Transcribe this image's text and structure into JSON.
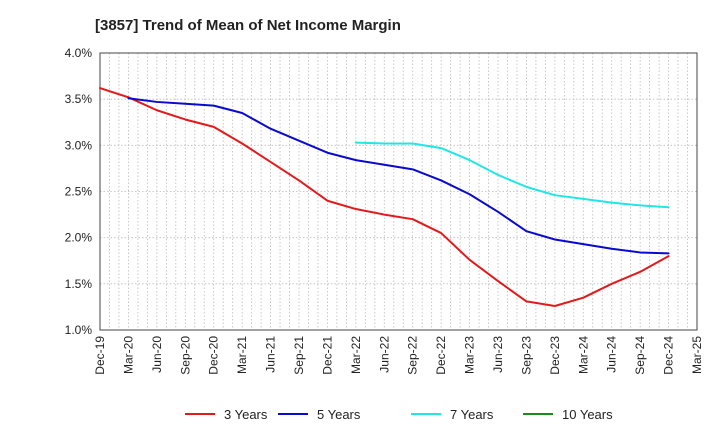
{
  "chart_data": {
    "type": "line",
    "title": "[3857]  Trend of Mean of Net Income Margin",
    "xlabel": "",
    "ylabel": "",
    "x_ticks": [
      "Dec-19",
      "Mar-20",
      "Jun-20",
      "Sep-20",
      "Dec-20",
      "Mar-21",
      "Jun-21",
      "Sep-21",
      "Dec-21",
      "Mar-22",
      "Jun-22",
      "Sep-22",
      "Dec-22",
      "Mar-23",
      "Jun-23",
      "Sep-23",
      "Dec-23",
      "Mar-24",
      "Jun-24",
      "Sep-24",
      "Dec-24",
      "Mar-25"
    ],
    "y_ticks": [
      "1.0%",
      "1.5%",
      "2.0%",
      "2.5%",
      "3.0%",
      "3.5%",
      "4.0%"
    ],
    "ylim": [
      1.0,
      4.0
    ],
    "grid": true,
    "legend_position": "bottom",
    "series": [
      {
        "name": "3 Years",
        "color": "#e31a1c",
        "x": [
          "Dec-19",
          "Mar-20",
          "Jun-20",
          "Sep-20",
          "Dec-20",
          "Mar-21",
          "Jun-21",
          "Sep-21",
          "Dec-21",
          "Mar-22",
          "Jun-22",
          "Sep-22",
          "Dec-22",
          "Mar-23",
          "Jun-23",
          "Sep-23",
          "Dec-23",
          "Mar-24",
          "Jun-24",
          "Sep-24",
          "Dec-24"
        ],
        "values": [
          3.62,
          3.52,
          3.38,
          3.28,
          3.2,
          3.02,
          2.82,
          2.62,
          2.4,
          2.31,
          2.25,
          2.2,
          2.05,
          1.76,
          1.53,
          1.31,
          1.26,
          1.35,
          1.5,
          1.63,
          1.8
        ]
      },
      {
        "name": "5 Years",
        "color": "#0a0acc",
        "x": [
          "Mar-20",
          "Jun-20",
          "Sep-20",
          "Dec-20",
          "Mar-21",
          "Jun-21",
          "Sep-21",
          "Dec-21",
          "Mar-22",
          "Jun-22",
          "Sep-22",
          "Dec-22",
          "Mar-23",
          "Jun-23",
          "Sep-23",
          "Dec-23",
          "Mar-24",
          "Jun-24",
          "Sep-24",
          "Dec-24"
        ],
        "values": [
          3.51,
          3.47,
          3.45,
          3.43,
          3.35,
          3.18,
          3.05,
          2.92,
          2.84,
          2.79,
          2.74,
          2.62,
          2.47,
          2.28,
          2.07,
          1.98,
          1.93,
          1.88,
          1.84,
          1.83
        ]
      },
      {
        "name": "7 Years",
        "color": "#22e6e6",
        "x": [
          "Mar-22",
          "Jun-22",
          "Sep-22",
          "Dec-22",
          "Mar-23",
          "Jun-23",
          "Sep-23",
          "Dec-23",
          "Mar-24",
          "Jun-24",
          "Sep-24",
          "Dec-24"
        ],
        "values": [
          3.03,
          3.02,
          3.02,
          2.97,
          2.84,
          2.68,
          2.55,
          2.46,
          2.42,
          2.38,
          2.35,
          2.33
        ]
      },
      {
        "name": "10 Years",
        "color": "#1a8c1a",
        "x": [],
        "values": []
      }
    ]
  }
}
